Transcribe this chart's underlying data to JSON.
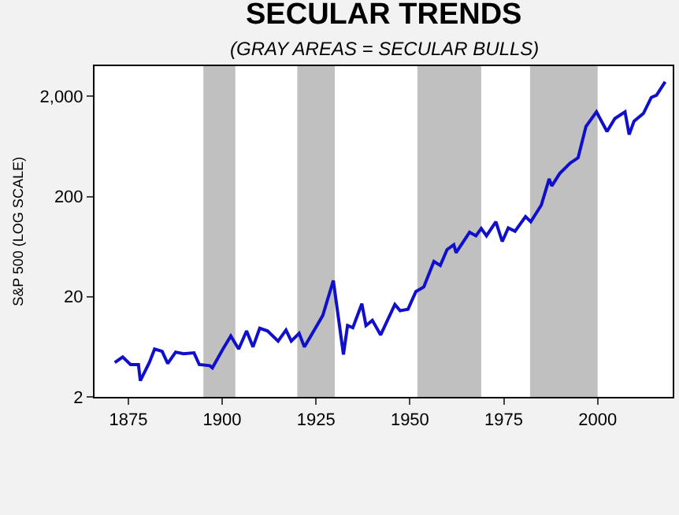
{
  "chart_data": {
    "type": "line",
    "title": "SECULAR TRENDS",
    "subtitle": "(GRAY AREAS = SECULAR BULLS)",
    "ylabel": "S&P 500 (LOG SCALE)",
    "x": [
      1871.4,
      1873.5,
      1875.6,
      1877.7,
      1878.2,
      1880.6,
      1882,
      1884,
      1885.5,
      1887.6,
      1889.7,
      1892.5,
      1893.9,
      1896.7,
      1897.4,
      1900.2,
      1902.3,
      1904.4,
      1906.5,
      1908.2,
      1910,
      1912.1,
      1914.9,
      1917,
      1918.4,
      1920.5,
      1921.9,
      1924,
      1926.8,
      1929.6,
      1932.3,
      1933.4,
      1934.8,
      1937.2,
      1938.3,
      1940,
      1942.2,
      1946,
      1947.4,
      1949.5,
      1951.6,
      1953.7,
      1956.4,
      1958.1,
      1959.9,
      1961.7,
      1962.3,
      1965.9,
      1967.6,
      1969,
      1970.4,
      1972.9,
      1974.6,
      1976.2,
      1978,
      1980.8,
      1982.2,
      1985,
      1987.1,
      1987.8,
      1989.9,
      1992.7,
      1994.8,
      1996.9,
      1999.7,
      2002.5,
      2004.6,
      2007.3,
      2008.4,
      2009.7,
      2012.2,
      2014.3,
      2015.7,
      2018
    ],
    "series": [
      {
        "color": "#1010cc",
        "values": [
          4.4,
          5.0,
          4.2,
          4.2,
          2.9,
          4.4,
          6.0,
          5.7,
          4.3,
          5.6,
          5.4,
          5.5,
          4.2,
          4.1,
          3.9,
          6.0,
          8.1,
          6.0,
          9.1,
          6.3,
          9.7,
          9.1,
          7.2,
          9.3,
          7.2,
          8.6,
          6.3,
          8.6,
          13,
          29,
          5.3,
          10.3,
          9.8,
          17,
          10.3,
          11.6,
          8.3,
          16.7,
          14.5,
          15,
          22.5,
          25,
          45,
          41,
          59,
          66,
          55,
          88,
          81,
          96,
          81,
          112,
          71,
          97,
          90,
          126,
          112,
          164,
          300,
          255,
          339,
          432,
          487,
          1000,
          1400,
          890,
          1200,
          1400,
          830,
          1130,
          1350,
          1950,
          2050,
          2790
        ]
      }
    ],
    "log": "y",
    "xlim": [
      1866,
      2020
    ],
    "xticks": [
      1875,
      1900,
      1925,
      1950,
      1975,
      2000
    ],
    "ylim": [
      2,
      4000
    ],
    "yticks": [
      2,
      20,
      200,
      {
        "value": 2000,
        "label": "2,000"
      }
    ],
    "grid": false,
    "legend": false,
    "bands": [
      {
        "axis": "x",
        "from": 1895,
        "to": 1903.5,
        "color": "#c0c0c0"
      },
      {
        "axis": "x",
        "from": 1920,
        "to": 1930,
        "color": "#c0c0c0"
      },
      {
        "axis": "x",
        "from": 1952,
        "to": 1969,
        "color": "#c0c0c0"
      },
      {
        "axis": "x",
        "from": 1982,
        "to": 2000,
        "color": "#c0c0c0"
      }
    ]
  }
}
